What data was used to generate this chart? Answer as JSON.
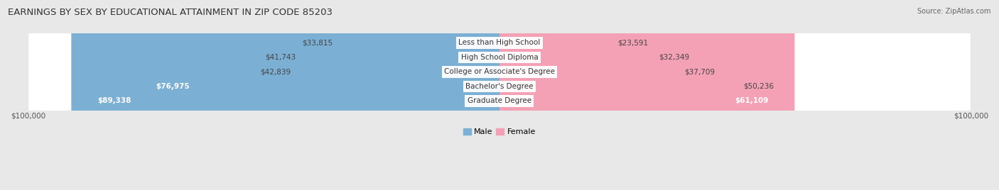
{
  "title": "EARNINGS BY SEX BY EDUCATIONAL ATTAINMENT IN ZIP CODE 85203",
  "source": "Source: ZipAtlas.com",
  "categories": [
    "Less than High School",
    "High School Diploma",
    "College or Associate's Degree",
    "Bachelor's Degree",
    "Graduate Degree"
  ],
  "male_values": [
    33815,
    41743,
    42839,
    76975,
    89338
  ],
  "female_values": [
    23591,
    32349,
    37709,
    50236,
    61109
  ],
  "male_color": "#7bafd4",
  "female_color": "#f4a0b5",
  "male_label": "Male",
  "female_label": "Female",
  "axis_max": 100000,
  "background_color": "#e8e8e8",
  "row_bg_color": "#f5f5f5",
  "row_border_color": "#d0d0d0",
  "title_fontsize": 9.5,
  "source_fontsize": 7,
  "value_fontsize": 7.5,
  "label_fontsize": 7.5
}
